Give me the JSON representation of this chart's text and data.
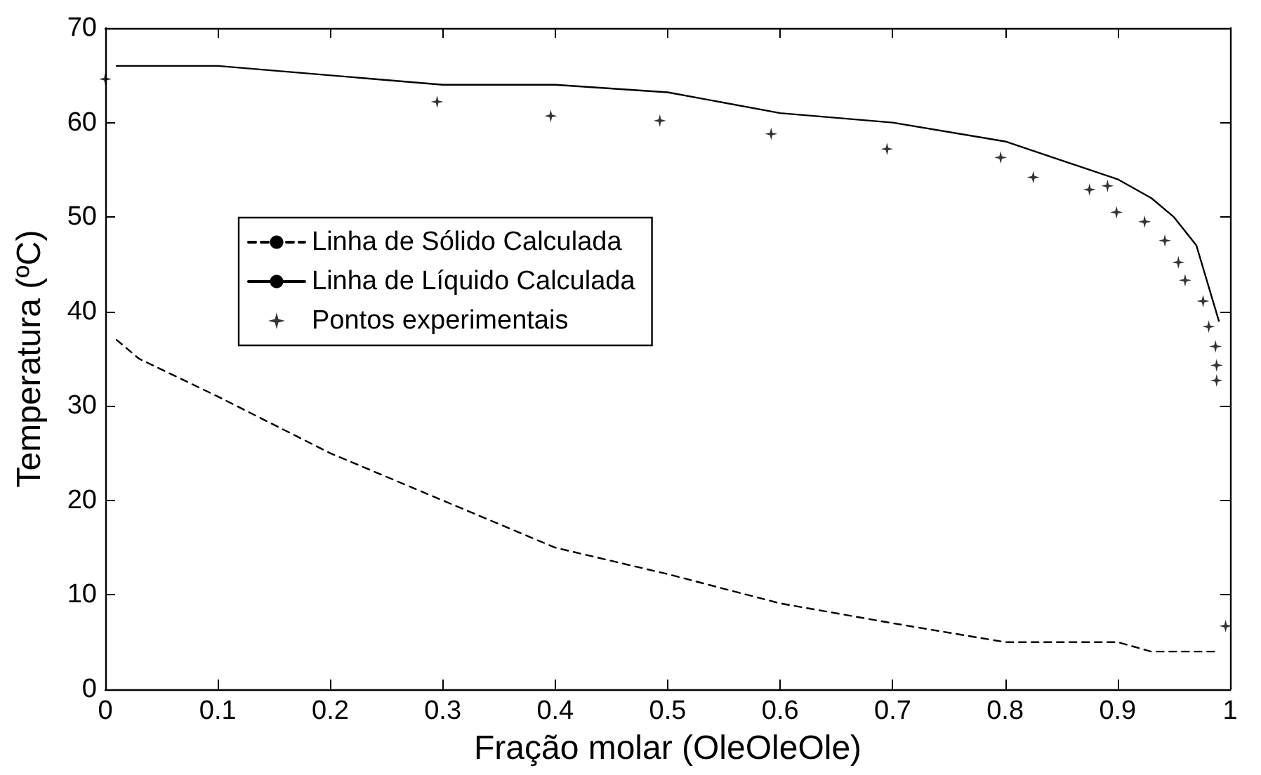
{
  "chart_data": {
    "type": "line",
    "xlabel": "Fração molar (OleOleOle)",
    "ylabel": "Temperatura (ºC)",
    "xlim": [
      0,
      1
    ],
    "xticks": [
      0,
      0.1,
      0.2,
      0.3,
      0.4,
      0.5,
      0.6,
      0.7,
      0.8,
      0.9,
      1
    ],
    "ylim": [
      0,
      70
    ],
    "yticks": [
      0,
      10,
      20,
      30,
      40,
      50,
      60,
      70
    ],
    "grid": false,
    "legend": "left",
    "series": [
      {
        "name": "Linha de Sólido Calculada",
        "line_style": "dashed",
        "color": "#000000",
        "x": [
          0.01,
          0.03,
          0.1,
          0.2,
          0.3,
          0.4,
          0.5,
          0.6,
          0.7,
          0.8,
          0.9,
          0.93,
          0.99
        ],
        "values": [
          37,
          35,
          31,
          25,
          20,
          15,
          12.2,
          9.1,
          7,
          5,
          5,
          4,
          4
        ]
      },
      {
        "name": "Linha de Líquido Calculada",
        "line_style": "solid",
        "color": "#000000",
        "x": [
          0.01,
          0.1,
          0.3,
          0.4,
          0.5,
          0.6,
          0.7,
          0.8,
          0.9,
          0.93,
          0.95,
          0.97,
          0.99
        ],
        "values": [
          66,
          66,
          64,
          64,
          63.2,
          61,
          60,
          58,
          54,
          52,
          50,
          47,
          39
        ]
      },
      {
        "name": "Pontos experimentais",
        "type": "scatter",
        "marker": "star",
        "color": "#000000",
        "x": [
          0,
          0.295,
          0.396,
          0.493,
          0.592,
          0.695,
          0.796,
          0.825,
          0.875,
          0.891,
          0.899,
          0.924,
          0.942,
          0.954,
          0.96,
          0.976,
          0.981,
          0.987,
          0.988,
          0.988,
          0.996
        ],
        "values": [
          64.6,
          62.2,
          60.7,
          60.2,
          58.8,
          57.2,
          56.3,
          54.2,
          52.9,
          53.3,
          50.5,
          49.5,
          47.5,
          45.2,
          43.3,
          41.1,
          38.4,
          36.3,
          34.3,
          32.7,
          6.7
        ]
      }
    ]
  }
}
